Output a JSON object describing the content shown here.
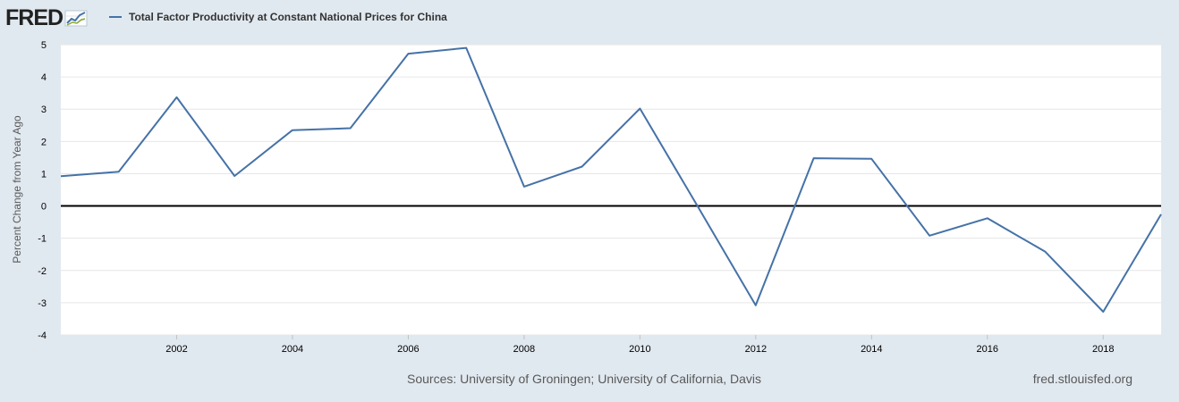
{
  "brand": {
    "logo_text": "FRED",
    "brand_color": "#212121"
  },
  "legend": {
    "label": "Total Factor Productivity at Constant National Prices for China",
    "color": "#4572a7"
  },
  "footer": {
    "sources": "Sources: University of Groningen; University of California, Davis",
    "url": "fred.stlouisfed.org"
  },
  "chart_data": {
    "type": "line",
    "title": "",
    "xlabel": "",
    "ylabel": "Percent Change from Year Ago",
    "ylim": [
      -4,
      5
    ],
    "xlim": [
      2000,
      2019
    ],
    "x_ticks": [
      2002,
      2004,
      2006,
      2008,
      2010,
      2012,
      2014,
      2016,
      2018
    ],
    "y_ticks": [
      -4,
      -3,
      -2,
      -1,
      0,
      1,
      2,
      3,
      4,
      5
    ],
    "grid": true,
    "zero_line": true,
    "series": [
      {
        "name": "Total Factor Productivity at Constant National Prices for China",
        "color": "#4572a7",
        "x": [
          2000,
          2001,
          2002,
          2003,
          2004,
          2005,
          2006,
          2007,
          2008,
          2009,
          2010,
          2011,
          2012,
          2013,
          2014,
          2015,
          2016,
          2017,
          2018,
          2019
        ],
        "values": [
          0.92,
          1.06,
          3.37,
          0.93,
          2.35,
          2.41,
          4.72,
          4.9,
          0.6,
          1.22,
          3.02,
          -0.02,
          -3.08,
          1.48,
          1.46,
          -0.92,
          -0.38,
          -1.42,
          -3.28,
          -0.26
        ]
      }
    ]
  }
}
